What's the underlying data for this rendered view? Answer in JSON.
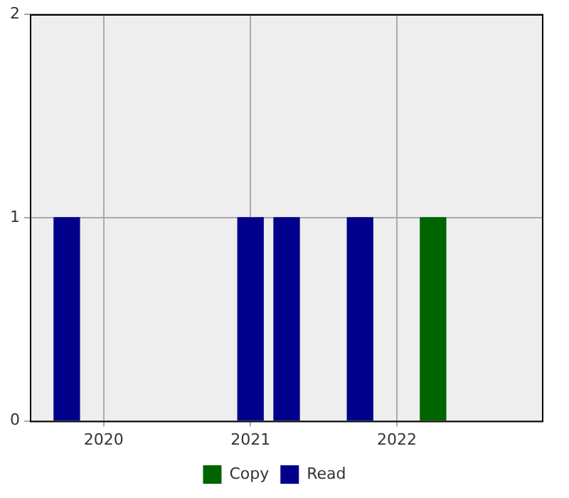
{
  "chart_data": {
    "type": "bar",
    "xlim": [
      "2019-07",
      "2023-01"
    ],
    "xticks": [
      "2020",
      "2021",
      "2022"
    ],
    "ylim": [
      0,
      2
    ],
    "yticks": [
      0,
      1,
      2
    ],
    "grid": true,
    "legend": "bottom",
    "series": [
      {
        "name": "Copy",
        "color": "#006400",
        "x": [
          "2022-04"
        ],
        "values": [
          1
        ]
      },
      {
        "name": "Read",
        "color": "#00008b",
        "x": [
          "2019-10",
          "2021-01",
          "2021-04",
          "2021-10"
        ],
        "values": [
          1,
          1,
          1,
          1
        ]
      }
    ]
  }
}
